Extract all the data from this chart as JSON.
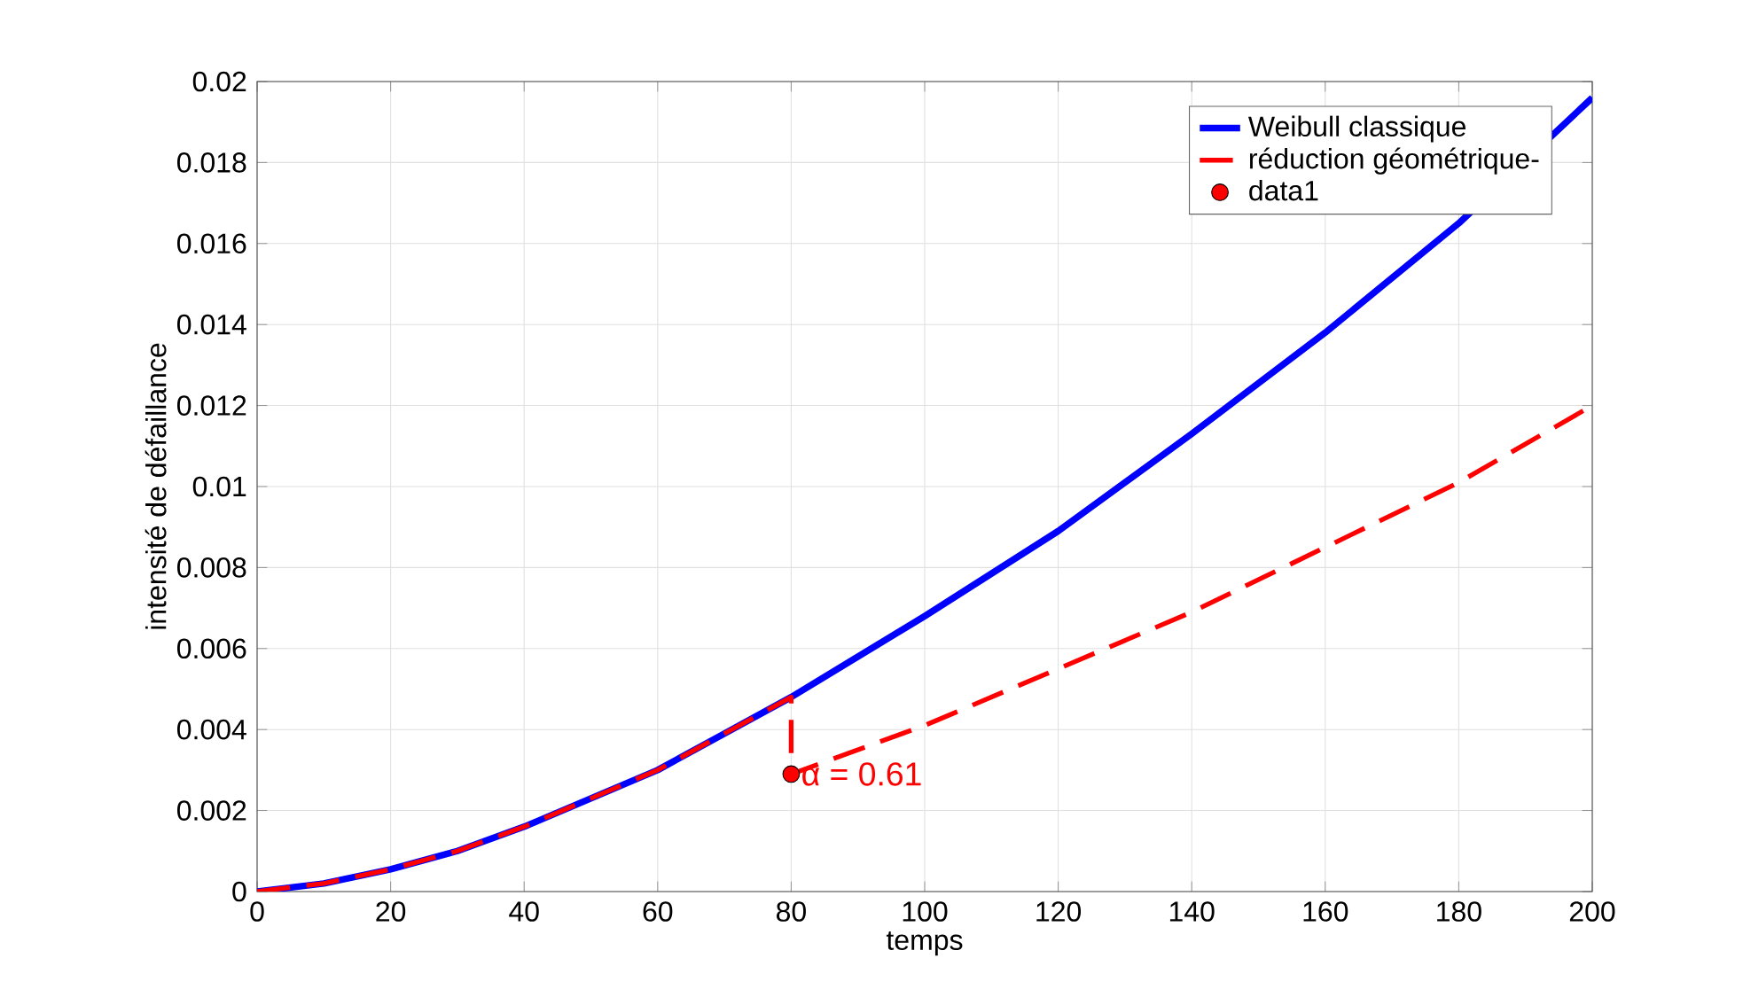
{
  "chart_data": {
    "type": "line",
    "xlabel": "temps",
    "ylabel": "intensité de défaillance",
    "xlim": [
      0,
      200
    ],
    "xticks": [
      0,
      20,
      40,
      60,
      80,
      100,
      120,
      140,
      160,
      180,
      200
    ],
    "ylim": [
      0,
      0.02
    ],
    "yticks": [
      0,
      0.002,
      0.004,
      0.006,
      0.008,
      0.01,
      0.012,
      0.014,
      0.016,
      0.018,
      0.02
    ],
    "grid": true,
    "legend": "top right",
    "series": [
      {
        "name": "Weibull classique",
        "color": "#0000ff",
        "line_style": "solid",
        "x": [
          0,
          10,
          20,
          30,
          40,
          50,
          60,
          70,
          80,
          90,
          100,
          120,
          140,
          160,
          180,
          200
        ],
        "values": [
          0,
          0.0002,
          0.00055,
          0.001,
          0.0016,
          0.0023,
          0.003,
          0.0039,
          0.0048,
          0.0058,
          0.0068,
          0.0089,
          0.0113,
          0.0138,
          0.0165,
          0.0196
        ]
      },
      {
        "name": "réduction géométrique-",
        "color": "#ff0000",
        "line_style": "dashed",
        "x": [
          0,
          10,
          20,
          30,
          40,
          50,
          60,
          70,
          80,
          80,
          100,
          120,
          140,
          160,
          180,
          200
        ],
        "values": [
          0,
          0.0002,
          0.00055,
          0.001,
          0.0016,
          0.0023,
          0.003,
          0.0039,
          0.0048,
          0.0029,
          0.0041,
          0.0055,
          0.0069,
          0.0085,
          0.0101,
          0.012
        ]
      },
      {
        "name": "data1",
        "type": "scatter",
        "color": "#ff0000",
        "marker": "circle",
        "x": [
          80
        ],
        "values": [
          0.0029
        ]
      }
    ],
    "annotations": [
      {
        "text": "α = 0.61",
        "x": 80,
        "y": 0.0029
      }
    ]
  }
}
